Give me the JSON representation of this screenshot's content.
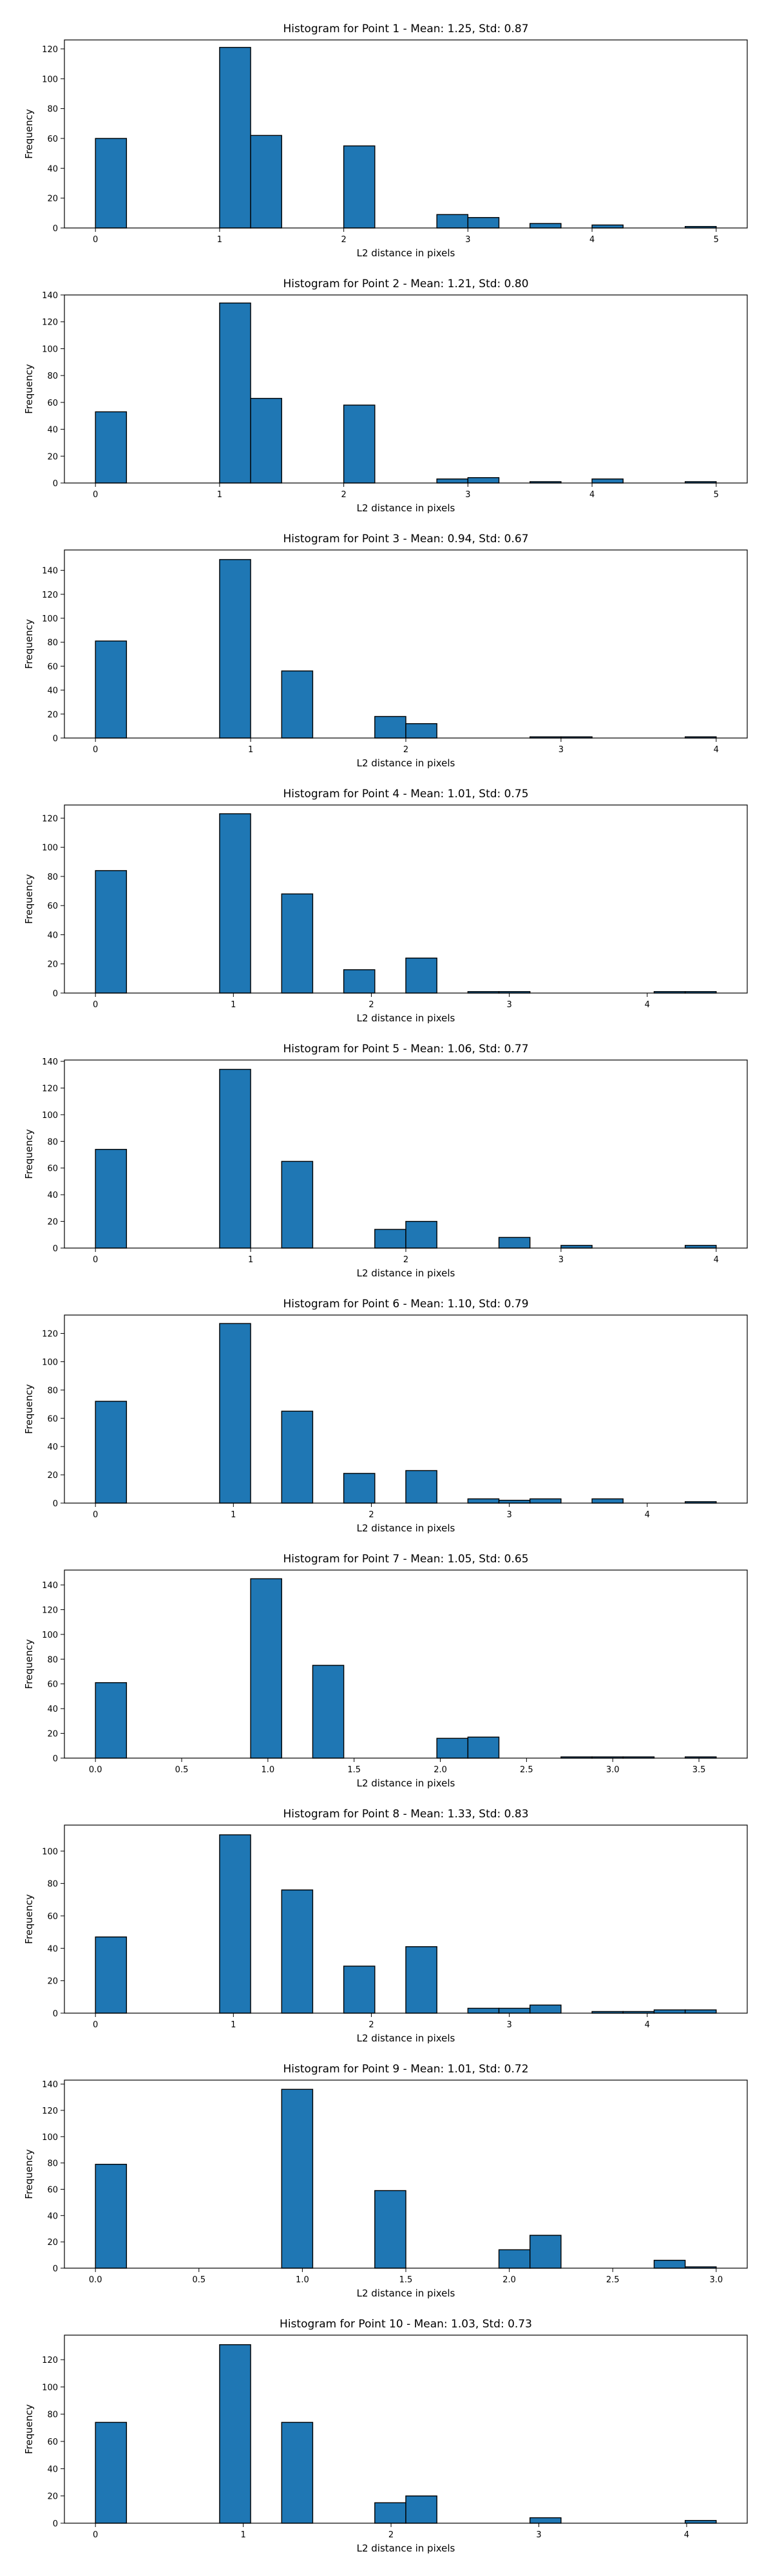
{
  "chart_data": [
    {
      "type": "bar",
      "title": "Histogram for Point 1 - Mean: 1.25, Std: 0.87",
      "xlabel": "L2 distance in pixels",
      "ylabel": "Frequency",
      "xlim": [
        -0.25,
        5.25
      ],
      "ylim": [
        0,
        126
      ],
      "xticks": [
        0,
        1,
        2,
        3,
        4,
        5
      ],
      "xtick_labels": [
        "0",
        "1",
        "2",
        "3",
        "4",
        "5"
      ],
      "yticks": [
        0,
        20,
        40,
        60,
        80,
        100,
        120
      ],
      "bin_width": 0.25,
      "bins": [
        {
          "x": 0.0,
          "value": 60
        },
        {
          "x": 1.0,
          "value": 121
        },
        {
          "x": 1.25,
          "value": 62
        },
        {
          "x": 2.0,
          "value": 55
        },
        {
          "x": 2.75,
          "value": 9
        },
        {
          "x": 3.0,
          "value": 7
        },
        {
          "x": 3.5,
          "value": 3
        },
        {
          "x": 4.0,
          "value": 2
        },
        {
          "x": 4.75,
          "value": 1
        }
      ]
    },
    {
      "type": "bar",
      "title": "Histogram for Point 2 - Mean: 1.21, Std: 0.80",
      "xlabel": "L2 distance in pixels",
      "ylabel": "Frequency",
      "xlim": [
        -0.25,
        5.25
      ],
      "ylim": [
        0,
        140
      ],
      "xticks": [
        0,
        1,
        2,
        3,
        4,
        5
      ],
      "xtick_labels": [
        "0",
        "1",
        "2",
        "3",
        "4",
        "5"
      ],
      "yticks": [
        0,
        20,
        40,
        60,
        80,
        100,
        120,
        140
      ],
      "bin_width": 0.25,
      "bins": [
        {
          "x": 0.0,
          "value": 53
        },
        {
          "x": 1.0,
          "value": 134
        },
        {
          "x": 1.25,
          "value": 63
        },
        {
          "x": 2.0,
          "value": 58
        },
        {
          "x": 2.75,
          "value": 3
        },
        {
          "x": 3.0,
          "value": 4
        },
        {
          "x": 3.5,
          "value": 1
        },
        {
          "x": 4.0,
          "value": 3
        },
        {
          "x": 4.75,
          "value": 1
        }
      ]
    },
    {
      "type": "bar",
      "title": "Histogram for Point 3 - Mean: 0.94, Std: 0.67",
      "xlabel": "L2 distance in pixels",
      "ylabel": "Frequency",
      "xlim": [
        -0.2,
        4.2
      ],
      "ylim": [
        0,
        157
      ],
      "xticks": [
        0,
        1,
        2,
        3,
        4
      ],
      "xtick_labels": [
        "0",
        "1",
        "2",
        "3",
        "4"
      ],
      "yticks": [
        0,
        20,
        40,
        60,
        80,
        100,
        120,
        140
      ],
      "bin_width": 0.2,
      "bins": [
        {
          "x": 0.0,
          "value": 81
        },
        {
          "x": 0.8,
          "value": 149
        },
        {
          "x": 1.2,
          "value": 56
        },
        {
          "x": 1.8,
          "value": 18
        },
        {
          "x": 2.0,
          "value": 12
        },
        {
          "x": 2.8,
          "value": 1
        },
        {
          "x": 3.0,
          "value": 1
        },
        {
          "x": 3.8,
          "value": 1
        }
      ]
    },
    {
      "type": "bar",
      "title": "Histogram for Point 4 - Mean: 1.01, Std: 0.75",
      "xlabel": "L2 distance in pixels",
      "ylabel": "Frequency",
      "xlim": [
        -0.225,
        4.725
      ],
      "ylim": [
        0,
        129
      ],
      "xticks": [
        0,
        1,
        2,
        3,
        4
      ],
      "xtick_labels": [
        "0",
        "1",
        "2",
        "3",
        "4"
      ],
      "yticks": [
        0,
        20,
        40,
        60,
        80,
        100,
        120
      ],
      "bin_width": 0.225,
      "bins": [
        {
          "x": 0.0,
          "value": 84
        },
        {
          "x": 0.9,
          "value": 123
        },
        {
          "x": 1.35,
          "value": 68
        },
        {
          "x": 1.8,
          "value": 16
        },
        {
          "x": 2.25,
          "value": 24
        },
        {
          "x": 2.7,
          "value": 1
        },
        {
          "x": 2.925,
          "value": 1
        },
        {
          "x": 4.05,
          "value": 1
        },
        {
          "x": 4.275,
          "value": 1
        }
      ]
    },
    {
      "type": "bar",
      "title": "Histogram for Point 5 - Mean: 1.06, Std: 0.77",
      "xlabel": "L2 distance in pixels",
      "ylabel": "Frequency",
      "xlim": [
        -0.2,
        4.2
      ],
      "ylim": [
        0,
        141
      ],
      "xticks": [
        0,
        1,
        2,
        3,
        4
      ],
      "xtick_labels": [
        "0",
        "1",
        "2",
        "3",
        "4"
      ],
      "yticks": [
        0,
        20,
        40,
        60,
        80,
        100,
        120,
        140
      ],
      "bin_width": 0.2,
      "bins": [
        {
          "x": 0.0,
          "value": 74
        },
        {
          "x": 0.8,
          "value": 134
        },
        {
          "x": 1.2,
          "value": 65
        },
        {
          "x": 1.8,
          "value": 14
        },
        {
          "x": 2.0,
          "value": 20
        },
        {
          "x": 2.6,
          "value": 8
        },
        {
          "x": 3.0,
          "value": 2
        },
        {
          "x": 3.8,
          "value": 2
        }
      ]
    },
    {
      "type": "bar",
      "title": "Histogram for Point 6 - Mean: 1.10, Std: 0.79",
      "xlabel": "L2 distance in pixels",
      "ylabel": "Frequency",
      "xlim": [
        -0.225,
        4.725
      ],
      "ylim": [
        0,
        133
      ],
      "xticks": [
        0,
        1,
        2,
        3,
        4
      ],
      "xtick_labels": [
        "0",
        "1",
        "2",
        "3",
        "4"
      ],
      "yticks": [
        0,
        20,
        40,
        60,
        80,
        100,
        120
      ],
      "bin_width": 0.225,
      "bins": [
        {
          "x": 0.0,
          "value": 72
        },
        {
          "x": 0.9,
          "value": 127
        },
        {
          "x": 1.35,
          "value": 65
        },
        {
          "x": 1.8,
          "value": 21
        },
        {
          "x": 2.25,
          "value": 23
        },
        {
          "x": 2.7,
          "value": 3
        },
        {
          "x": 2.925,
          "value": 2
        },
        {
          "x": 3.15,
          "value": 3
        },
        {
          "x": 3.6,
          "value": 3
        },
        {
          "x": 4.275,
          "value": 1
        }
      ]
    },
    {
      "type": "bar",
      "title": "Histogram for Point 7 - Mean: 1.05, Std: 0.65",
      "xlabel": "L2 distance in pixels",
      "ylabel": "Frequency",
      "xlim": [
        -0.18,
        3.78
      ],
      "ylim": [
        0,
        152
      ],
      "xticks": [
        0,
        0.5,
        1,
        1.5,
        2,
        2.5,
        3,
        3.5
      ],
      "xtick_labels": [
        "0.0",
        "0.5",
        "1.0",
        "1.5",
        "2.0",
        "2.5",
        "3.0",
        "3.5"
      ],
      "yticks": [
        0,
        20,
        40,
        60,
        80,
        100,
        120,
        140
      ],
      "bin_width": 0.18,
      "bins": [
        {
          "x": 0.0,
          "value": 61
        },
        {
          "x": 0.9,
          "value": 145
        },
        {
          "x": 1.26,
          "value": 75
        },
        {
          "x": 1.98,
          "value": 16
        },
        {
          "x": 2.16,
          "value": 17
        },
        {
          "x": 2.7,
          "value": 1
        },
        {
          "x": 2.88,
          "value": 1
        },
        {
          "x": 3.06,
          "value": 1
        },
        {
          "x": 3.42,
          "value": 1
        }
      ]
    },
    {
      "type": "bar",
      "title": "Histogram for Point 8 - Mean: 1.33, Std: 0.83",
      "xlabel": "L2 distance in pixels",
      "ylabel": "Frequency",
      "xlim": [
        -0.225,
        4.725
      ],
      "ylim": [
        0,
        116
      ],
      "xticks": [
        0,
        1,
        2,
        3,
        4
      ],
      "xtick_labels": [
        "0",
        "1",
        "2",
        "3",
        "4"
      ],
      "yticks": [
        0,
        20,
        40,
        60,
        80,
        100
      ],
      "bin_width": 0.225,
      "bins": [
        {
          "x": 0.0,
          "value": 47
        },
        {
          "x": 0.9,
          "value": 110
        },
        {
          "x": 1.35,
          "value": 76
        },
        {
          "x": 1.8,
          "value": 29
        },
        {
          "x": 2.25,
          "value": 41
        },
        {
          "x": 2.7,
          "value": 3
        },
        {
          "x": 2.925,
          "value": 3
        },
        {
          "x": 3.15,
          "value": 5
        },
        {
          "x": 3.6,
          "value": 1
        },
        {
          "x": 3.825,
          "value": 1
        },
        {
          "x": 4.05,
          "value": 2
        },
        {
          "x": 4.275,
          "value": 2
        }
      ]
    },
    {
      "type": "bar",
      "title": "Histogram for Point 9 - Mean: 1.01, Std: 0.72",
      "xlabel": "L2 distance in pixels",
      "ylabel": "Frequency",
      "xlim": [
        -0.15,
        3.15
      ],
      "ylim": [
        0,
        143
      ],
      "xticks": [
        0,
        0.5,
        1,
        1.5,
        2,
        2.5,
        3
      ],
      "xtick_labels": [
        "0.0",
        "0.5",
        "1.0",
        "1.5",
        "2.0",
        "2.5",
        "3.0"
      ],
      "yticks": [
        0,
        20,
        40,
        60,
        80,
        100,
        120,
        140
      ],
      "bin_width": 0.15,
      "bins": [
        {
          "x": 0.0,
          "value": 79
        },
        {
          "x": 0.9,
          "value": 136
        },
        {
          "x": 1.35,
          "value": 59
        },
        {
          "x": 1.95,
          "value": 14
        },
        {
          "x": 2.1,
          "value": 25
        },
        {
          "x": 2.7,
          "value": 6
        },
        {
          "x": 2.85,
          "value": 1
        }
      ]
    },
    {
      "type": "bar",
      "title": "Histogram for Point 10 - Mean: 1.03, Std: 0.73",
      "xlabel": "L2 distance in pixels",
      "ylabel": "Frequency",
      "xlim": [
        -0.21,
        4.41
      ],
      "ylim": [
        0,
        138
      ],
      "xticks": [
        0,
        1,
        2,
        3,
        4
      ],
      "xtick_labels": [
        "0",
        "1",
        "2",
        "3",
        "4"
      ],
      "yticks": [
        0,
        20,
        40,
        60,
        80,
        100,
        120
      ],
      "bin_width": 0.21,
      "bins": [
        {
          "x": 0.0,
          "value": 74
        },
        {
          "x": 0.84,
          "value": 131
        },
        {
          "x": 1.26,
          "value": 74
        },
        {
          "x": 1.89,
          "value": 15
        },
        {
          "x": 2.1,
          "value": 20
        },
        {
          "x": 2.94,
          "value": 4
        },
        {
          "x": 3.99,
          "value": 2
        }
      ]
    }
  ]
}
